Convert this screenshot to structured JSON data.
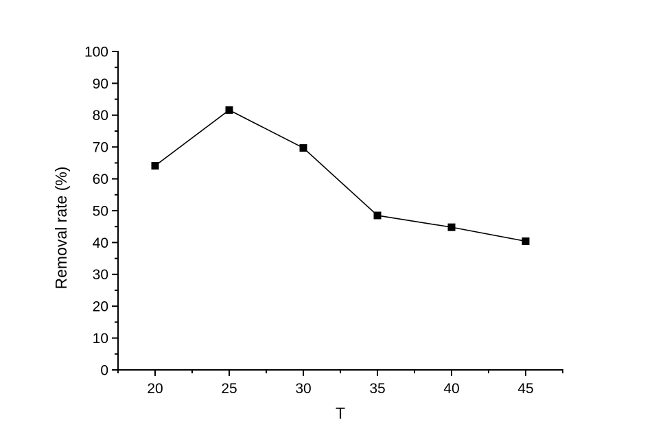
{
  "chart_data": {
    "type": "line",
    "title": "",
    "xlabel": "T",
    "ylabel": "Removal rate (%)",
    "xlim": [
      17.5,
      47.5
    ],
    "ylim": [
      0,
      100
    ],
    "x_major_ticks": [
      20,
      25,
      30,
      35,
      40,
      45
    ],
    "x_tick_labels": [
      "20",
      "25",
      "30",
      "35",
      "40",
      "45"
    ],
    "x_minor_step": 2.5,
    "y_major_ticks": [
      0,
      10,
      20,
      30,
      40,
      50,
      60,
      70,
      80,
      90,
      100
    ],
    "y_tick_labels": [
      "0",
      "10",
      "20",
      "30",
      "40",
      "50",
      "60",
      "70",
      "80",
      "90",
      "100"
    ],
    "y_minor_step": 5,
    "grid": false,
    "legend": false,
    "series": [
      {
        "name": "Removal rate",
        "marker": "filled-square",
        "color": "#000000",
        "x": [
          20,
          25,
          30,
          35,
          40,
          45
        ],
        "y": [
          64.1,
          81.6,
          69.7,
          48.5,
          44.8,
          40.4
        ]
      }
    ]
  },
  "colors": {
    "axis": "#000000",
    "line": "#000000",
    "marker": "#000000",
    "background": "#ffffff",
    "text": "#000000"
  }
}
